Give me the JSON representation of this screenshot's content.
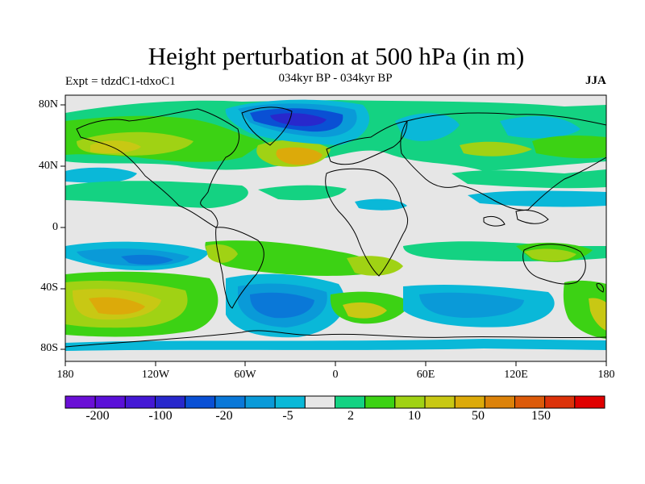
{
  "title": "Height perturbation at 500 hPa (in m)",
  "experiment": "Expt = tdzdC1-tdxoC1",
  "period": "034kyr BP - 034kyr BP",
  "season": "JJA",
  "lat_labels": [
    "80N",
    "40N",
    "0",
    "40S",
    "80S"
  ],
  "lon_labels": [
    "180",
    "120W",
    "60W",
    "0",
    "60E",
    "120E",
    "180"
  ],
  "colorbar": {
    "colors": [
      "#6a0fd6",
      "#5a10d8",
      "#4418d4",
      "#2828cc",
      "#0a50d4",
      "#0a78d8",
      "#0a9ad8",
      "#0ab8d8",
      "#e6e6e6",
      "#14d282",
      "#3cd214",
      "#a0d214",
      "#c8c814",
      "#dcaa0a",
      "#dc820a",
      "#dc5a0a",
      "#dc320a",
      "#e00000"
    ],
    "labels": [
      "-200",
      "-100",
      "-20",
      "-5",
      "2",
      "10",
      "50",
      "150"
    ]
  }
}
